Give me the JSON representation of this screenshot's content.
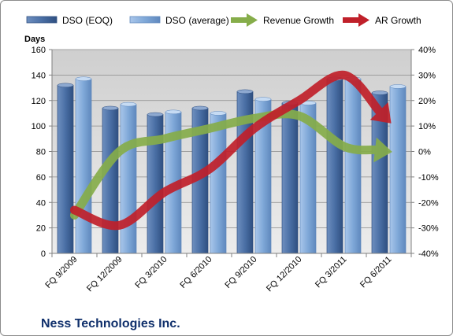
{
  "chart_data": {
    "type": "bar",
    "title": "Ness Technologies Inc.",
    "ylabel_left": "Days",
    "ylim_left": [
      0,
      160
    ],
    "yticks_left": [
      0,
      20,
      40,
      60,
      80,
      100,
      120,
      140,
      160
    ],
    "ylim_right": [
      -40,
      40
    ],
    "yticks_right": [
      "-40%",
      "-30%",
      "-20%",
      "-10%",
      "0%",
      "10%",
      "20%",
      "30%",
      "40%"
    ],
    "categories": [
      "FQ 9/2009",
      "FQ 12/2009",
      "FQ 3/2010",
      "FQ 6/2010",
      "FQ 9/2010",
      "FQ 12/2010",
      "FQ 3/2011",
      "FQ 6/2011"
    ],
    "series": [
      {
        "name": "DSO (EOQ)",
        "axis": "left",
        "kind": "bar",
        "color": "#4a6fa5",
        "values": [
          132,
          114,
          109,
          114,
          127,
          118,
          137,
          126
        ]
      },
      {
        "name": "DSO (average)",
        "axis": "left",
        "kind": "bar",
        "color": "#7fa8d8",
        "values": [
          137,
          117,
          111,
          110,
          121,
          118,
          137,
          131
        ]
      },
      {
        "name": "Revenue Growth",
        "axis": "right",
        "kind": "arrow-line",
        "color": "#86ad4a",
        "values": [
          -25,
          0,
          5,
          9,
          13,
          14,
          2,
          0
        ]
      },
      {
        "name": "AR Growth",
        "axis": "right",
        "kind": "arrow-line",
        "color": "#c0202a",
        "values": [
          -23,
          -29,
          -16,
          -7,
          9,
          20,
          30,
          12
        ]
      }
    ],
    "grid": true,
    "legend_position": "top"
  }
}
